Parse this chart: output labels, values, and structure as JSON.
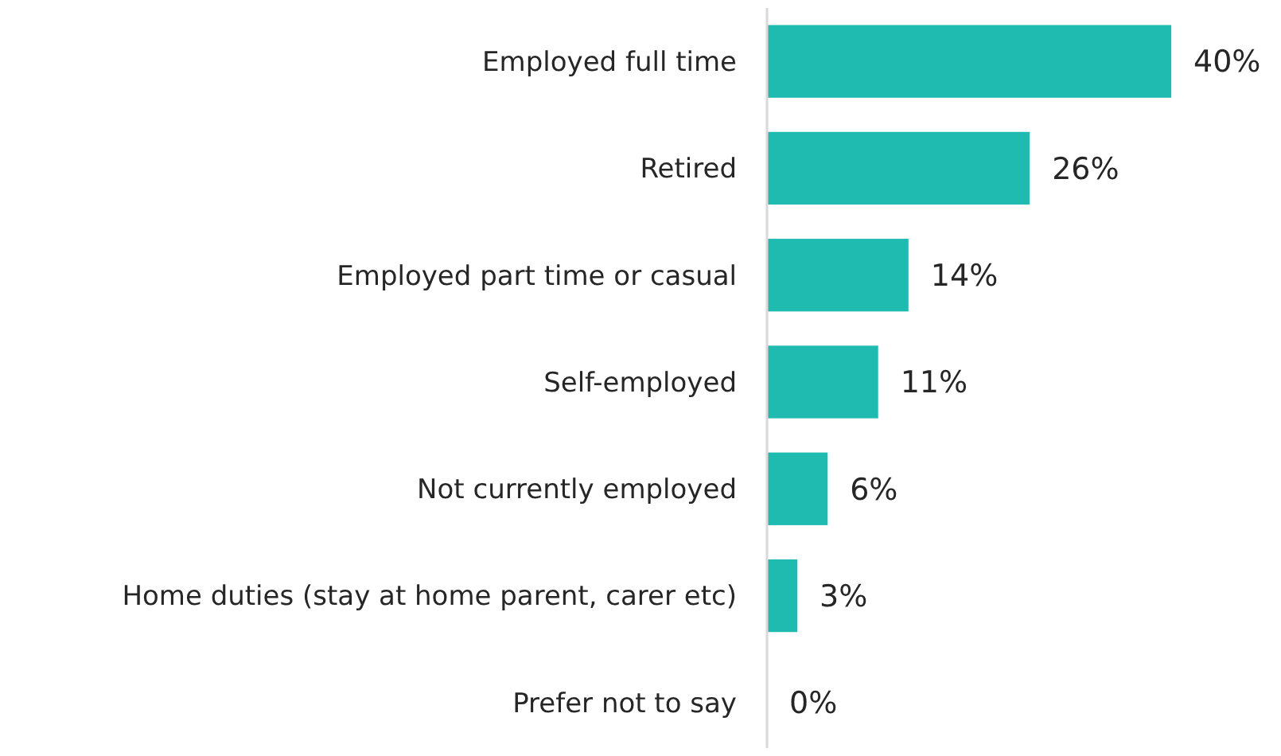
{
  "chart_data": {
    "type": "bar",
    "orientation": "horizontal",
    "categories": [
      "Employed full time",
      "Retired",
      "Employed part time or casual",
      "Self-employed",
      "Not currently employed",
      "Home duties (stay at home parent, carer etc)",
      "Prefer not to say"
    ],
    "values": [
      40,
      26,
      14,
      11,
      6,
      3,
      0
    ],
    "value_labels": [
      "40%",
      "26%",
      "14%",
      "11%",
      "6%",
      "3%",
      "0%"
    ],
    "color": "#20bbb0"
  }
}
